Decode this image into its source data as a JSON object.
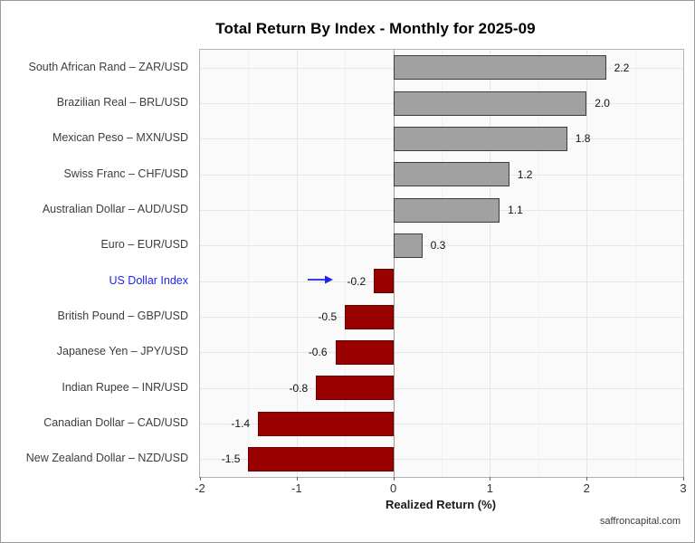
{
  "title": "Total Return By Index - Monthly for 2025-09",
  "footer": "saffroncapital.com",
  "chart_data": {
    "type": "bar",
    "orientation": "horizontal",
    "title": "Total Return By Index - Monthly for 2025-09",
    "xlabel": "Realized Return (%)",
    "ylabel": "",
    "xlim": [
      -2,
      3
    ],
    "xticks": [
      "-2",
      "-1",
      "0",
      "1",
      "2",
      "3"
    ],
    "xtick_values": [
      -2,
      -1,
      0,
      1,
      2,
      3
    ],
    "grid": true,
    "categories": [
      "South African Rand – ZAR/USD",
      "Brazilian Real – BRL/USD",
      "Mexican Peso – MXN/USD",
      "Swiss Franc – CHF/USD",
      "Australian Dollar – AUD/USD",
      "Euro – EUR/USD",
      "US Dollar Index",
      "British Pound – GBP/USD",
      "Japanese Yen – JPY/USD",
      "Indian Rupee – INR/USD",
      "Canadian Dollar – CAD/USD",
      "New Zealand Dollar – NZD/USD"
    ],
    "values": [
      2.2,
      2.0,
      1.8,
      1.2,
      1.1,
      0.3,
      -0.2,
      -0.5,
      -0.6,
      -0.8,
      -1.4,
      -1.5
    ],
    "value_labels": [
      "2.2",
      "2.0",
      "1.8",
      "1.2",
      "1.1",
      "0.3",
      "-0.2",
      "-0.5",
      "-0.6",
      "-0.8",
      "-1.4",
      "-1.5"
    ],
    "colors": {
      "positive_fill": "#a1a1a1",
      "positive_border": "#3d3d3d",
      "negative_fill": "#990000",
      "negative_border": "#6b0000",
      "panel_background": "#fafafa",
      "panel_border": "#b3b3b3",
      "grid_major": "#e6e6e6",
      "grid_minor": "#f0f0f0",
      "zero_line": "#999999",
      "highlight_blue": "#2222ee"
    },
    "highlight": {
      "category": "US Dollar Index",
      "category_index": 6,
      "label_color": "#2222ee",
      "annotation": "arrow-right",
      "arrow_color": "#2222ee"
    },
    "legend": null
  }
}
